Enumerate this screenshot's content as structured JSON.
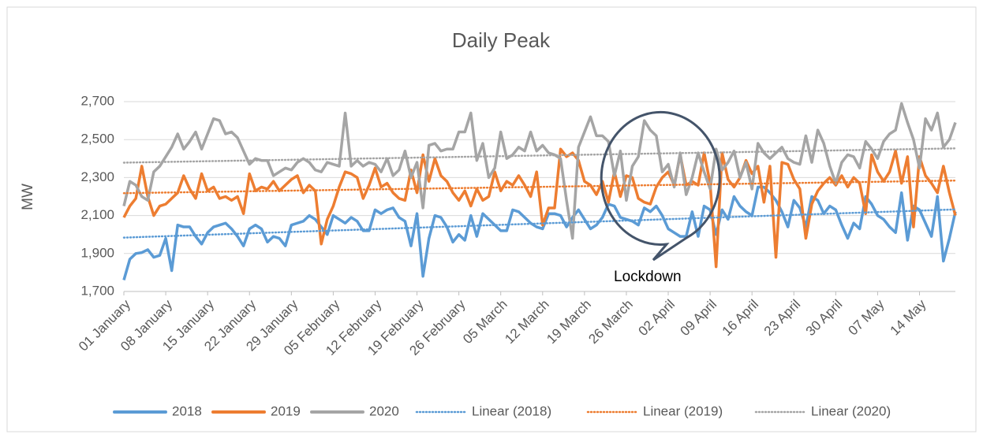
{
  "chart_data": {
    "type": "line",
    "title": "Daily Peak",
    "y_label": "MW",
    "annotation": "Lockdown",
    "ylim": [
      1700,
      2700
    ],
    "yticks": [
      {
        "value": 1700,
        "label": "1,700"
      },
      {
        "value": 1900,
        "label": "1,900"
      },
      {
        "value": 2100,
        "label": "2,100"
      },
      {
        "value": 2300,
        "label": "2,300"
      },
      {
        "value": 2500,
        "label": "2,500"
      },
      {
        "value": 2700,
        "label": "2,700"
      }
    ],
    "grid": true,
    "legend": "bottom",
    "categories": [
      "01 January",
      null,
      null,
      null,
      null,
      null,
      null,
      "08 January",
      null,
      null,
      null,
      null,
      null,
      null,
      "15 January",
      null,
      null,
      null,
      null,
      null,
      null,
      "22 January",
      null,
      null,
      null,
      null,
      null,
      null,
      "29 January",
      null,
      null,
      null,
      null,
      null,
      null,
      "05 February",
      null,
      null,
      null,
      null,
      null,
      null,
      "12 February",
      null,
      null,
      null,
      null,
      null,
      null,
      "19 February",
      null,
      null,
      null,
      null,
      null,
      null,
      "26 February",
      null,
      null,
      null,
      null,
      null,
      null,
      "05 March",
      null,
      null,
      null,
      null,
      null,
      null,
      "12 March",
      null,
      null,
      null,
      null,
      null,
      null,
      "19 March",
      null,
      null,
      null,
      null,
      null,
      null,
      "26 March",
      null,
      null,
      null,
      null,
      null,
      null,
      "02 April",
      null,
      null,
      null,
      null,
      null,
      null,
      "09 April",
      null,
      null,
      null,
      null,
      null,
      null,
      "16 April",
      null,
      null,
      null,
      null,
      null,
      null,
      "23 April",
      null,
      null,
      null,
      null,
      null,
      null,
      "30 April",
      null,
      null,
      null,
      null,
      null,
      null,
      "07 May",
      null,
      null,
      null,
      null,
      null,
      null,
      "14 May",
      null,
      null,
      null,
      null,
      null,
      null
    ],
    "series": [
      {
        "name": "2018",
        "color": "#5b9bd5",
        "trendline": {
          "name": "Linear (2018)",
          "color": "#5b9bd5"
        },
        "values": [
          1760,
          1870,
          1900,
          1905,
          1920,
          1880,
          1890,
          1980,
          1810,
          2050,
          2040,
          2040,
          1990,
          1950,
          2010,
          2040,
          2050,
          2060,
          2030,
          1990,
          1940,
          2030,
          2050,
          2030,
          1960,
          1990,
          1980,
          1940,
          2050,
          2060,
          2070,
          2100,
          2080,
          2040,
          2000,
          2100,
          2080,
          2060,
          2090,
          2070,
          2020,
          2020,
          2130,
          2110,
          2130,
          2140,
          2090,
          2070,
          1940,
          2110,
          1780,
          1980,
          2100,
          2090,
          2040,
          1960,
          2000,
          1970,
          2100,
          1990,
          2110,
          2080,
          2050,
          2020,
          2020,
          2130,
          2120,
          2090,
          2060,
          2040,
          2030,
          2110,
          2110,
          2100,
          2040,
          2090,
          2130,
          2080,
          2030,
          2050,
          2090,
          2160,
          2150,
          2090,
          2080,
          2070,
          2050,
          2140,
          2120,
          2150,
          2100,
          2030,
          2010,
          1990,
          1990,
          2120,
          1990,
          2150,
          2130,
          2000,
          2130,
          2080,
          2200,
          2150,
          2120,
          2100,
          2250,
          2250,
          2220,
          2180,
          2120,
          2040,
          2180,
          2140,
          2040,
          2200,
          2180,
          2110,
          2150,
          2130,
          2050,
          1980,
          2060,
          2030,
          2200,
          2160,
          2100,
          2080,
          2040,
          2010,
          2220,
          1970,
          2150,
          2130,
          2060,
          1990,
          2200,
          1860,
          1980,
          2120
        ]
      },
      {
        "name": "2019",
        "color": "#ed7d31",
        "trendline": {
          "name": "Linear (2019)",
          "color": "#ed7d31"
        },
        "values": [
          2090,
          2150,
          2190,
          2360,
          2200,
          2100,
          2150,
          2160,
          2190,
          2220,
          2310,
          2240,
          2190,
          2320,
          2230,
          2250,
          2190,
          2200,
          2180,
          2200,
          2110,
          2320,
          2230,
          2250,
          2240,
          2280,
          2230,
          2260,
          2290,
          2310,
          2220,
          2260,
          2230,
          1950,
          2080,
          2150,
          2250,
          2330,
          2320,
          2300,
          2190,
          2260,
          2350,
          2250,
          2270,
          2220,
          2190,
          2180,
          2340,
          2220,
          2420,
          2280,
          2400,
          2310,
          2280,
          2220,
          2180,
          2230,
          2150,
          2240,
          2180,
          2200,
          2330,
          2230,
          2280,
          2260,
          2310,
          2260,
          2200,
          2330,
          2050,
          2140,
          2140,
          2450,
          2410,
          2430,
          2390,
          2280,
          2260,
          2210,
          2280,
          2170,
          2330,
          2200,
          2310,
          2300,
          2190,
          2170,
          2160,
          2250,
          2300,
          2330,
          2260,
          2420,
          2260,
          2280,
          2260,
          2430,
          2270,
          1830,
          2430,
          2290,
          2250,
          2300,
          2390,
          2320,
          2360,
          2170,
          2360,
          1880,
          2380,
          2370,
          2290,
          2240,
          1980,
          2160,
          2230,
          2270,
          2300,
          2260,
          2310,
          2250,
          2300,
          2270,
          2110,
          2420,
          2330,
          2280,
          2330,
          2440,
          2270,
          2410,
          2040,
          2410,
          2310,
          2270,
          2220,
          2360,
          2220,
          2100
        ]
      },
      {
        "name": "2020",
        "color": "#a5a5a5",
        "trendline": {
          "name": "Linear (2020)",
          "color": "#a5a5a5"
        },
        "values": [
          2150,
          2280,
          2260,
          2200,
          2180,
          2330,
          2360,
          2410,
          2460,
          2530,
          2450,
          2490,
          2540,
          2450,
          2530,
          2610,
          2600,
          2530,
          2540,
          2510,
          2440,
          2370,
          2400,
          2390,
          2390,
          2310,
          2330,
          2350,
          2340,
          2380,
          2400,
          2380,
          2340,
          2330,
          2380,
          2370,
          2360,
          2640,
          2360,
          2390,
          2360,
          2380,
          2370,
          2330,
          2400,
          2310,
          2340,
          2440,
          2300,
          2380,
          2140,
          2470,
          2480,
          2440,
          2450,
          2450,
          2540,
          2540,
          2640,
          2390,
          2480,
          2300,
          2350,
          2540,
          2400,
          2420,
          2460,
          2440,
          2540,
          2440,
          2470,
          2430,
          2420,
          2400,
          2180,
          1980,
          2460,
          2540,
          2620,
          2520,
          2520,
          2490,
          2310,
          2440,
          2180,
          2360,
          2410,
          2600,
          2550,
          2520,
          2330,
          2370,
          2250,
          2430,
          2210,
          2300,
          2430,
          2330,
          2240,
          2450,
          2340,
          2380,
          2440,
          2300,
          2380,
          2240,
          2480,
          2430,
          2400,
          2430,
          2460,
          2400,
          2380,
          2370,
          2520,
          2380,
          2550,
          2480,
          2360,
          2270,
          2380,
          2420,
          2410,
          2350,
          2490,
          2450,
          2400,
          2490,
          2530,
          2550,
          2690,
          2590,
          2500,
          2350,
          2610,
          2550,
          2640,
          2460,
          2500,
          2590
        ]
      }
    ]
  }
}
